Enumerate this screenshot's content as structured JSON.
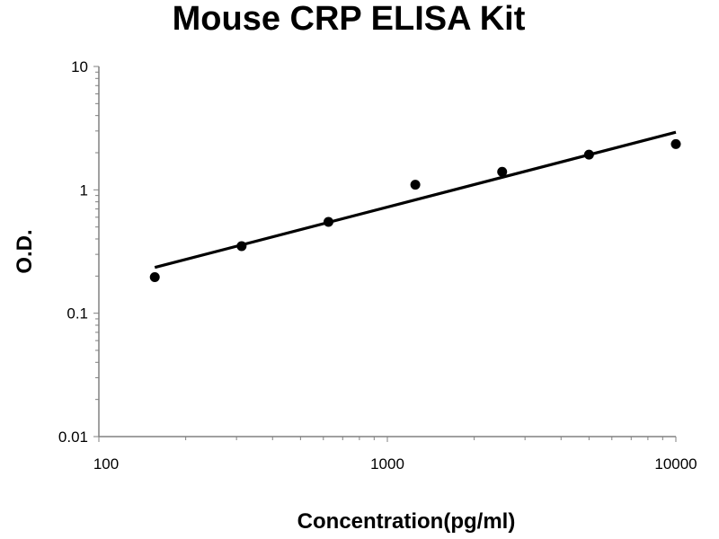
{
  "chart_data": {
    "type": "scatter",
    "title": "Mouse CRP ELISA Kit",
    "xlabel": "Concentration(pg/ml)",
    "ylabel": "O.D.",
    "xscale": "log",
    "yscale": "log",
    "xlim": [
      100,
      10000
    ],
    "ylim": [
      0.01,
      10
    ],
    "xticks": [
      "100",
      "1000",
      "10000"
    ],
    "yticks": [
      "0.01",
      "0.1",
      "1",
      "10"
    ],
    "grid": false,
    "legend": "none",
    "series": [
      {
        "x": [
          156.25,
          312.5,
          625,
          1250,
          2500,
          5000,
          10000
        ],
        "y": [
          0.196,
          0.35,
          0.55,
          1.1,
          1.4,
          1.93,
          2.35
        ]
      }
    ],
    "trendline": {
      "type": "power",
      "x": [
        156.25,
        10000
      ],
      "y": [
        0.235,
        2.93
      ]
    },
    "colors": {
      "points": "#000000",
      "line": "#000000",
      "axis": "#808080"
    }
  }
}
